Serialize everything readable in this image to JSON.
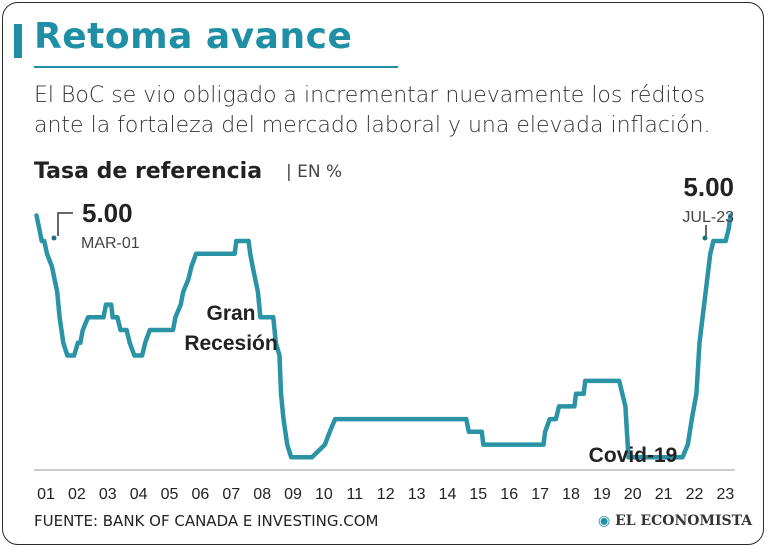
{
  "header": {
    "title": "Retoma avance",
    "subtitle": "El BoC se vio obligado a incrementar nuevamente los réditos ante la fortaleza del mercado laboral y una elevada inflación."
  },
  "chart_title": "Tasa de referencia",
  "chart_unit": "| EN %",
  "footer": {
    "source": "FUENTE: BANK OF CANADA E INVESTING.COM",
    "logo": "EL ECONOMISTA"
  },
  "colors": {
    "accent": "#1f8fa6",
    "line": "#2a93a6",
    "text": "#222222"
  },
  "chart_data": {
    "type": "line",
    "title": "Tasa de referencia",
    "ylabel": "EN %",
    "x_tick_labels": [
      "01",
      "02",
      "03",
      "04",
      "05",
      "06",
      "07",
      "08",
      "09",
      "10",
      "11",
      "12",
      "13",
      "14",
      "15",
      "16",
      "17",
      "18",
      "19",
      "20",
      "21",
      "22",
      "23"
    ],
    "xlim": [
      2001.0,
      2023.7
    ],
    "ylim": [
      0,
      5.6
    ],
    "grid": false,
    "series": [
      {
        "points": [
          [
            2001.08,
            5.0
          ],
          [
            2001.17,
            4.75
          ],
          [
            2001.25,
            4.5
          ],
          [
            2001.33,
            4.5
          ],
          [
            2001.42,
            4.25
          ],
          [
            2001.58,
            4.0
          ],
          [
            2001.75,
            3.5
          ],
          [
            2001.83,
            3.0
          ],
          [
            2001.95,
            2.5
          ],
          [
            2002.08,
            2.25
          ],
          [
            2002.3,
            2.25
          ],
          [
            2002.42,
            2.5
          ],
          [
            2002.5,
            2.5
          ],
          [
            2002.58,
            2.75
          ],
          [
            2002.75,
            3.0
          ],
          [
            2003.25,
            3.0
          ],
          [
            2003.33,
            3.25
          ],
          [
            2003.5,
            3.25
          ],
          [
            2003.55,
            3.0
          ],
          [
            2003.7,
            3.0
          ],
          [
            2003.8,
            2.75
          ],
          [
            2004.0,
            2.75
          ],
          [
            2004.1,
            2.5
          ],
          [
            2004.25,
            2.25
          ],
          [
            2004.5,
            2.25
          ],
          [
            2004.6,
            2.5
          ],
          [
            2004.75,
            2.75
          ],
          [
            2005.5,
            2.75
          ],
          [
            2005.58,
            3.0
          ],
          [
            2005.75,
            3.25
          ],
          [
            2005.83,
            3.5
          ],
          [
            2006.0,
            3.75
          ],
          [
            2006.1,
            4.0
          ],
          [
            2006.25,
            4.25
          ],
          [
            2007.0,
            4.25
          ],
          [
            2007.5,
            4.25
          ],
          [
            2007.55,
            4.5
          ],
          [
            2007.95,
            4.5
          ],
          [
            2008.0,
            4.25
          ],
          [
            2008.08,
            4.0
          ],
          [
            2008.25,
            3.5
          ],
          [
            2008.33,
            3.0
          ],
          [
            2008.75,
            3.0
          ],
          [
            2008.83,
            2.5
          ],
          [
            2008.95,
            2.25
          ],
          [
            2009.0,
            1.5
          ],
          [
            2009.08,
            1.0
          ],
          [
            2009.2,
            0.5
          ],
          [
            2009.33,
            0.25
          ],
          [
            2010.0,
            0.25
          ],
          [
            2010.42,
            0.5
          ],
          [
            2010.58,
            0.75
          ],
          [
            2010.75,
            1.0
          ],
          [
            2015.0,
            1.0
          ],
          [
            2015.08,
            0.75
          ],
          [
            2015.5,
            0.75
          ],
          [
            2015.55,
            0.5
          ],
          [
            2017.5,
            0.5
          ],
          [
            2017.55,
            0.75
          ],
          [
            2017.7,
            1.0
          ],
          [
            2017.9,
            1.0
          ],
          [
            2018.0,
            1.25
          ],
          [
            2018.5,
            1.25
          ],
          [
            2018.55,
            1.5
          ],
          [
            2018.8,
            1.5
          ],
          [
            2018.85,
            1.75
          ],
          [
            2019.95,
            1.75
          ],
          [
            2020.15,
            1.25
          ],
          [
            2020.2,
            0.75
          ],
          [
            2020.25,
            0.25
          ],
          [
            2022.0,
            0.25
          ],
          [
            2022.17,
            0.5
          ],
          [
            2022.3,
            1.0
          ],
          [
            2022.45,
            1.5
          ],
          [
            2022.55,
            2.5
          ],
          [
            2022.7,
            3.25
          ],
          [
            2022.8,
            3.75
          ],
          [
            2022.9,
            4.25
          ],
          [
            2023.0,
            4.5
          ],
          [
            2023.4,
            4.5
          ],
          [
            2023.5,
            4.75
          ],
          [
            2023.55,
            5.0
          ]
        ]
      }
    ],
    "annotations": [
      {
        "key": "start",
        "value": "5.00",
        "date": "MAR-01"
      },
      {
        "key": "end",
        "value": "5.00",
        "date": "JUL-23"
      },
      {
        "key": "gr1",
        "text": "Gran"
      },
      {
        "key": "gr2",
        "text": "Recesión"
      },
      {
        "key": "covid",
        "text": "Covid-19"
      }
    ]
  }
}
